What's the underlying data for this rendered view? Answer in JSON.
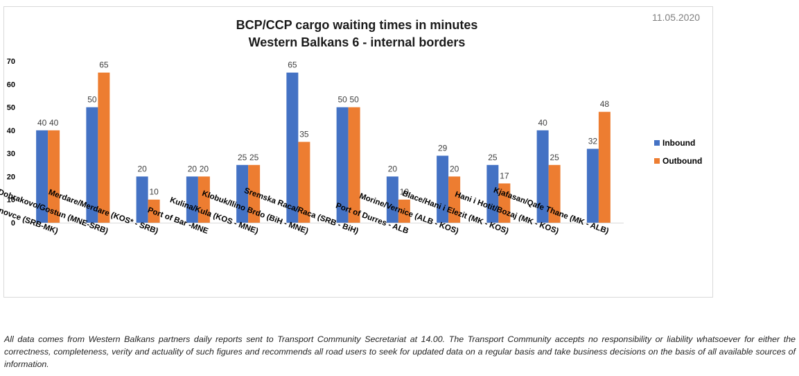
{
  "date": "11.05.2020",
  "disclaimer": "All data comes from Western Balkans partners daily reports sent to Transport Community Secretariat at 14.00. The Transport Community accepts no responsibility or liability whatsoever for either the correctness, completeness, verity and actuality of such figures and recommends all road users to seek for updated data on a regular basis and take business decisions on the basis of all available sources of information.",
  "colors": {
    "inbound": "#4472C4",
    "outbound": "#ED7D31"
  },
  "chart_data": {
    "type": "bar",
    "title": "BCP/CCP cargo waiting times in minutes",
    "subtitle": "Western Balkans 6 - internal borders",
    "categories": [
      "Presevo/ Tabanovce (SRB-MK)",
      "Dobrakovo/Gostun (MNE-SRB)",
      "Merdare/Merdare (KOS* - SRB)",
      "Port of Bar -MNE",
      "Kulina/Kula (KOS - MNE)",
      "Klobuk/Ilino Brdo (BiH - MNE)",
      "Sremska Raca/Raca (SRB - BiH)",
      "Port of Durres - ALB",
      "Morine/Vernice (ALB - KOS)",
      "Blace/Hani i Elezit (MK - KOS)",
      "Hani i Hotit/Bozaj (MK - KOS)",
      "Kjafasan/Qafe Thane (MK - ALB)"
    ],
    "series": [
      {
        "name": "Inbound",
        "values": [
          40,
          50,
          20,
          20,
          25,
          65,
          50,
          20,
          29,
          25,
          40,
          32
        ]
      },
      {
        "name": "Outbound",
        "values": [
          40,
          65,
          10,
          20,
          25,
          35,
          50,
          10,
          20,
          17,
          25,
          48
        ]
      }
    ],
    "ylim": [
      0,
      70
    ],
    "yticks": [
      0,
      10,
      20,
      30,
      40,
      50,
      60,
      70
    ],
    "grid": false,
    "legend": "right"
  }
}
